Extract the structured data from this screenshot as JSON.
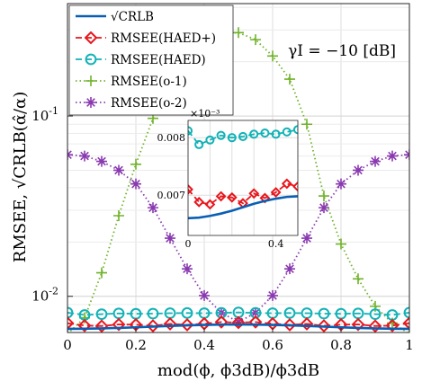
{
  "chart_data": {
    "type": "line",
    "title": "",
    "xlabel": "mod(ϕ, ϕ3dB)/ϕ3dB",
    "ylabel": "RMSEE, √CRLB(α̂/α)",
    "yscale": "log",
    "xlim": [
      0,
      1
    ],
    "ylim": [
      0.0063,
      0.42
    ],
    "grid": true,
    "legend_position": "top-left",
    "annotation": "γI = −10 [dB]",
    "x_ticks": [
      "0",
      "0.2",
      "0.4",
      "0.6",
      "0.8",
      "1"
    ],
    "y_ticks": [
      {
        "base": "10",
        "exp": "-2",
        "value": 0.01
      },
      {
        "base": "10",
        "exp": "-1",
        "value": 0.1
      }
    ],
    "series": [
      {
        "name": "√CRLB",
        "color": "#0a5fb4",
        "style": "solid",
        "marker": "none",
        "x": [
          0,
          0.05,
          0.1,
          0.15,
          0.2,
          0.25,
          0.3,
          0.35,
          0.4,
          0.45,
          0.5,
          0.55,
          0.6,
          0.65,
          0.7,
          0.75,
          0.8,
          0.85,
          0.9,
          0.95,
          1
        ],
        "values": [
          0.0066,
          0.00661,
          0.00664,
          0.00668,
          0.00673,
          0.00679,
          0.00685,
          0.0069,
          0.00694,
          0.00697,
          0.00698,
          0.00697,
          0.00694,
          0.0069,
          0.00685,
          0.00679,
          0.00673,
          0.00668,
          0.00664,
          0.00661,
          0.0066
        ]
      },
      {
        "name": "RMSEE(HAED+)",
        "color": "#e8161c",
        "style": "dashed",
        "marker": "diamond",
        "x": [
          0,
          0.05,
          0.1,
          0.15,
          0.2,
          0.25,
          0.3,
          0.35,
          0.4,
          0.45,
          0.5,
          0.55,
          0.6,
          0.65,
          0.7,
          0.75,
          0.8,
          0.85,
          0.9,
          0.95,
          1
        ],
        "values": [
          0.0071,
          0.00688,
          0.00684,
          0.00698,
          0.00696,
          0.00686,
          0.00703,
          0.00695,
          0.00705,
          0.0072,
          0.00715,
          0.0072,
          0.00705,
          0.00695,
          0.00703,
          0.00686,
          0.00696,
          0.00698,
          0.00684,
          0.00688,
          0.0071
        ]
      },
      {
        "name": "RMSEE(HAED)",
        "color": "#12b2b6",
        "style": "dashed",
        "marker": "circle",
        "x": [
          0,
          0.05,
          0.1,
          0.15,
          0.2,
          0.25,
          0.3,
          0.35,
          0.4,
          0.45,
          0.5,
          0.55,
          0.6,
          0.65,
          0.7,
          0.75,
          0.8,
          0.85,
          0.9,
          0.95,
          1
        ],
        "values": [
          0.00812,
          0.00788,
          0.00796,
          0.00804,
          0.008,
          0.00802,
          0.00806,
          0.00808,
          0.00806,
          0.0081,
          0.00814,
          0.0081,
          0.00806,
          0.00808,
          0.00806,
          0.00802,
          0.008,
          0.00804,
          0.00796,
          0.00788,
          0.00812
        ]
      },
      {
        "name": "RMSEE(o-1)",
        "color": "#6fb22a",
        "style": "dotted",
        "marker": "plus",
        "x": [
          0,
          0.05,
          0.1,
          0.15,
          0.2,
          0.25,
          0.3,
          0.35,
          0.4,
          0.45,
          0.5,
          0.55,
          0.6,
          0.65,
          0.7,
          0.75,
          0.8,
          0.85,
          0.9,
          0.95,
          1
        ],
        "values": [
          0.0062,
          0.0076,
          0.0135,
          0.028,
          0.054,
          0.097,
          0.155,
          0.215,
          0.26,
          0.285,
          0.29,
          0.265,
          0.215,
          0.16,
          0.09,
          0.036,
          0.0195,
          0.0125,
          0.0088,
          0.0071,
          0.0062
        ]
      },
      {
        "name": "RMSEE(o-2)",
        "color": "#8a3ab0",
        "style": "dotted",
        "marker": "asterisk",
        "x": [
          0,
          0.05,
          0.1,
          0.15,
          0.2,
          0.25,
          0.3,
          0.35,
          0.4,
          0.45,
          0.5,
          0.55,
          0.6,
          0.65,
          0.7,
          0.75,
          0.8,
          0.85,
          0.9,
          0.95,
          1
        ],
        "values": [
          0.061,
          0.06,
          0.056,
          0.05,
          0.042,
          0.031,
          0.021,
          0.0142,
          0.0101,
          0.0081,
          0.0072,
          0.0081,
          0.0101,
          0.0142,
          0.021,
          0.031,
          0.042,
          0.05,
          0.056,
          0.06,
          0.061
        ]
      }
    ],
    "inset": {
      "xlim": [
        0,
        0.5
      ],
      "ylim": [
        0.0063,
        0.0083
      ],
      "exponent_label": "×10⁻³",
      "x_ticks": [
        "0",
        "0.4"
      ],
      "y_ticks": [
        {
          "label": "0.007",
          "value": 0.007
        },
        {
          "label": "0.008",
          "value": 0.008
        }
      ]
    }
  }
}
